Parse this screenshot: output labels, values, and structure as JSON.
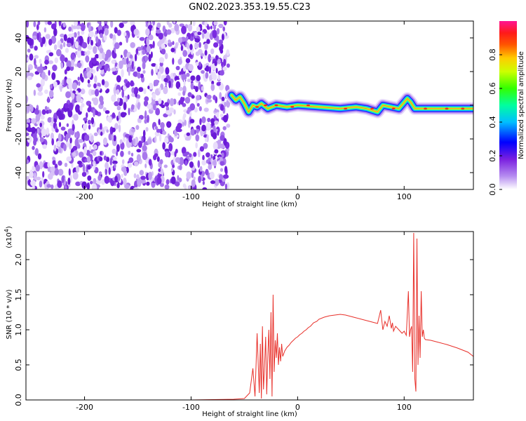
{
  "title": "GN02.2023.353.19.55.C23",
  "chart_data": [
    {
      "type": "heatmap",
      "xlabel": "Height of straight line (km)",
      "ylabel": "Frequency (Hz)",
      "xlim": [
        -255,
        165
      ],
      "ylim": [
        -50,
        50
      ],
      "x_ticks": [
        -200,
        -100,
        0,
        100
      ],
      "x_tick_labels": [
        "-200",
        "-100",
        "0",
        "100"
      ],
      "y_ticks": [
        -40,
        -20,
        0,
        20,
        40
      ],
      "y_tick_labels": [
        "-40",
        "-20",
        "0",
        "20",
        "40"
      ],
      "noise_region_x": [
        -255,
        -65
      ],
      "band_center_hz": [
        {
          "x": -62,
          "y": 6
        },
        {
          "x": -58,
          "y": 3
        },
        {
          "x": -54,
          "y": 5
        },
        {
          "x": -50,
          "y": 1
        },
        {
          "x": -46,
          "y": -4
        },
        {
          "x": -42,
          "y": 0
        },
        {
          "x": -38,
          "y": -1
        },
        {
          "x": -34,
          "y": 1
        },
        {
          "x": -28,
          "y": -2
        },
        {
          "x": -20,
          "y": 0
        },
        {
          "x": -10,
          "y": -1
        },
        {
          "x": 0,
          "y": 0
        },
        {
          "x": 20,
          "y": -1
        },
        {
          "x": 40,
          "y": -2
        },
        {
          "x": 55,
          "y": -1
        },
        {
          "x": 65,
          "y": -2
        },
        {
          "x": 75,
          "y": -4
        },
        {
          "x": 80,
          "y": 0
        },
        {
          "x": 95,
          "y": -2
        },
        {
          "x": 103,
          "y": 4
        },
        {
          "x": 106,
          "y": 2
        },
        {
          "x": 110,
          "y": -2
        },
        {
          "x": 130,
          "y": -2
        },
        {
          "x": 150,
          "y": -2
        },
        {
          "x": 165,
          "y": -2
        }
      ],
      "colorbar": {
        "label": "Normalized spectral amplitude",
        "range": [
          0,
          1
        ],
        "ticks": [
          0.0,
          0.2,
          0.4,
          0.6,
          0.8
        ],
        "tick_labels": [
          "0.0",
          "0.2",
          "0.4",
          "0.6",
          "0.8"
        ],
        "colors": [
          "#ffffff",
          "#8a2be2",
          "#0000ff",
          "#00bfff",
          "#00ff7f",
          "#7fff00",
          "#ffff00",
          "#ffa500",
          "#ff2a00",
          "#ff1493"
        ]
      },
      "grid": false
    },
    {
      "type": "line",
      "xlabel": "Height of straight line (km)",
      "ylabel": "SNR (10 * v/v)",
      "y_exponent": "(x10",
      "y_exponent_power": "4",
      "y_exponent_close": ")",
      "xlim": [
        -255,
        165
      ],
      "ylim": [
        0,
        2.4
      ],
      "x_ticks": [
        -200,
        -100,
        0,
        100
      ],
      "x_tick_labels": [
        "-200",
        "-100",
        "0",
        "100"
      ],
      "y_ticks": [
        0.0,
        0.5,
        1.0,
        1.5,
        2.0
      ],
      "y_tick_labels": [
        "0.0",
        "0.5",
        "1.0",
        "1.5",
        "2.0"
      ],
      "color": "#e8302a",
      "grid": false,
      "series": [
        {
          "x": [
            -255,
            -200,
            -150,
            -100,
            -60,
            -50,
            -45,
            -42,
            -40,
            -38,
            -36,
            -35,
            -34,
            -33,
            -32,
            -31,
            -30,
            -29,
            -28,
            -27,
            -26,
            -25,
            -24,
            -23,
            -22,
            -21,
            -20,
            -19,
            -18,
            -17,
            -16,
            -15,
            -14,
            -12,
            -10,
            -8,
            -6,
            -4,
            -2,
            0,
            2,
            4,
            6,
            8,
            10,
            12,
            15,
            18,
            20,
            25,
            30,
            35,
            40,
            45,
            50,
            55,
            60,
            65,
            70,
            75,
            78,
            80,
            82,
            84,
            86,
            88,
            89,
            90,
            92,
            95,
            98,
            100,
            102,
            104,
            105,
            106,
            107,
            108,
            109,
            110,
            111,
            112,
            113,
            114,
            115,
            116,
            117,
            118,
            119,
            120,
            125,
            130,
            140,
            150,
            160,
            165
          ],
          "y": [
            0.0,
            0.0,
            0.0,
            0.0,
            0.01,
            0.02,
            0.1,
            0.45,
            0.05,
            0.95,
            0.1,
            0.8,
            0.02,
            1.05,
            0.15,
            0.5,
            0.9,
            0.08,
            0.6,
            1.0,
            0.3,
            1.25,
            0.05,
            1.5,
            0.4,
            0.85,
            0.6,
            0.95,
            0.5,
            0.75,
            0.55,
            0.8,
            0.62,
            0.7,
            0.75,
            0.78,
            0.82,
            0.85,
            0.88,
            0.9,
            0.93,
            0.95,
            0.98,
            1.0,
            1.03,
            1.05,
            1.1,
            1.12,
            1.15,
            1.18,
            1.2,
            1.21,
            1.22,
            1.21,
            1.19,
            1.17,
            1.15,
            1.13,
            1.11,
            1.09,
            1.28,
            1.0,
            1.12,
            1.05,
            1.2,
            1.02,
            1.1,
            0.98,
            1.05,
            1.0,
            0.95,
            0.98,
            0.92,
            1.55,
            0.9,
            1.0,
            1.05,
            0.4,
            2.38,
            0.3,
            0.12,
            2.3,
            0.5,
            1.2,
            0.6,
            1.55,
            0.9,
            1.0,
            0.88,
            0.86,
            0.85,
            0.83,
            0.79,
            0.74,
            0.68,
            0.62
          ]
        }
      ]
    }
  ]
}
